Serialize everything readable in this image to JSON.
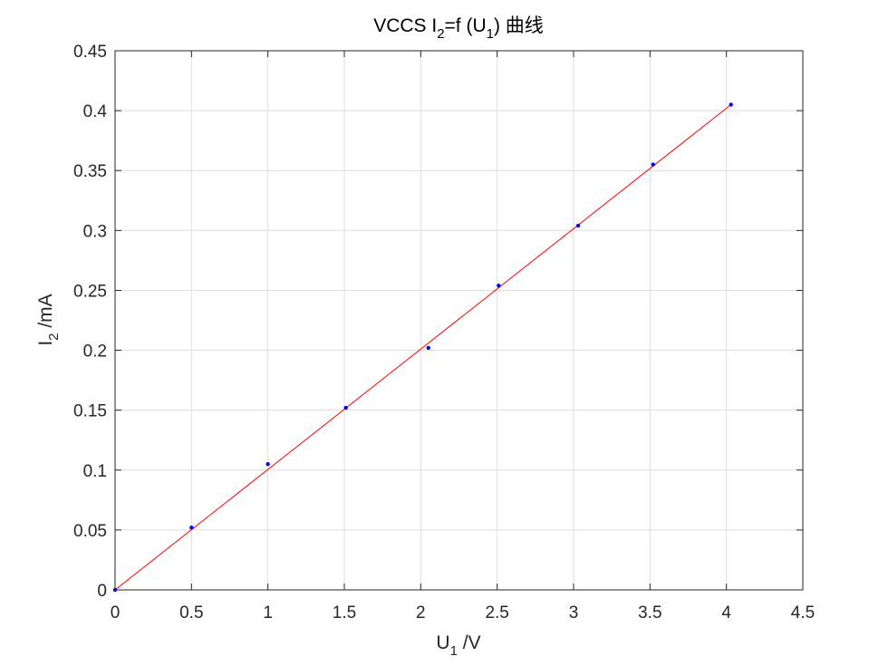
{
  "chart_data": {
    "type": "scatter",
    "title": "VCCS I",
    "title_sub": "2",
    "title_rest": "=f (U",
    "title_sub2": "1",
    "title_tail": ") 曲线",
    "xlabel": "U",
    "xlabel_sub": "1",
    "xlabel_unit": " /V",
    "ylabel": "I",
    "ylabel_sub": "2",
    "ylabel_unit": " /mA",
    "xlim": [
      0,
      4.5
    ],
    "ylim": [
      0,
      0.45
    ],
    "xticks": [
      0,
      0.5,
      1,
      1.5,
      2,
      2.5,
      3,
      3.5,
      4,
      4.5
    ],
    "xtick_labels": [
      "0",
      "0.5",
      "1",
      "1.5",
      "2",
      "2.5",
      "3",
      "3.5",
      "4",
      "4.5"
    ],
    "yticks": [
      0,
      0.05,
      0.1,
      0.15,
      0.2,
      0.25,
      0.3,
      0.35,
      0.4,
      0.45
    ],
    "ytick_labels": [
      "0",
      "0.05",
      "0.1",
      "0.15",
      "0.2",
      "0.25",
      "0.3",
      "0.35",
      "0.4",
      "0.45"
    ],
    "grid": true,
    "series": [
      {
        "kind": "points",
        "color": "#0000ff",
        "x": [
          0,
          0.5,
          1.0,
          1.51,
          2.05,
          2.51,
          3.03,
          3.52,
          4.03
        ],
        "y": [
          0,
          0.052,
          0.105,
          0.152,
          0.202,
          0.254,
          0.304,
          0.355,
          0.405
        ]
      },
      {
        "kind": "fit-line",
        "color": "#ff0000",
        "x": [
          0,
          4.03
        ],
        "y": [
          0,
          0.405
        ]
      }
    ]
  }
}
